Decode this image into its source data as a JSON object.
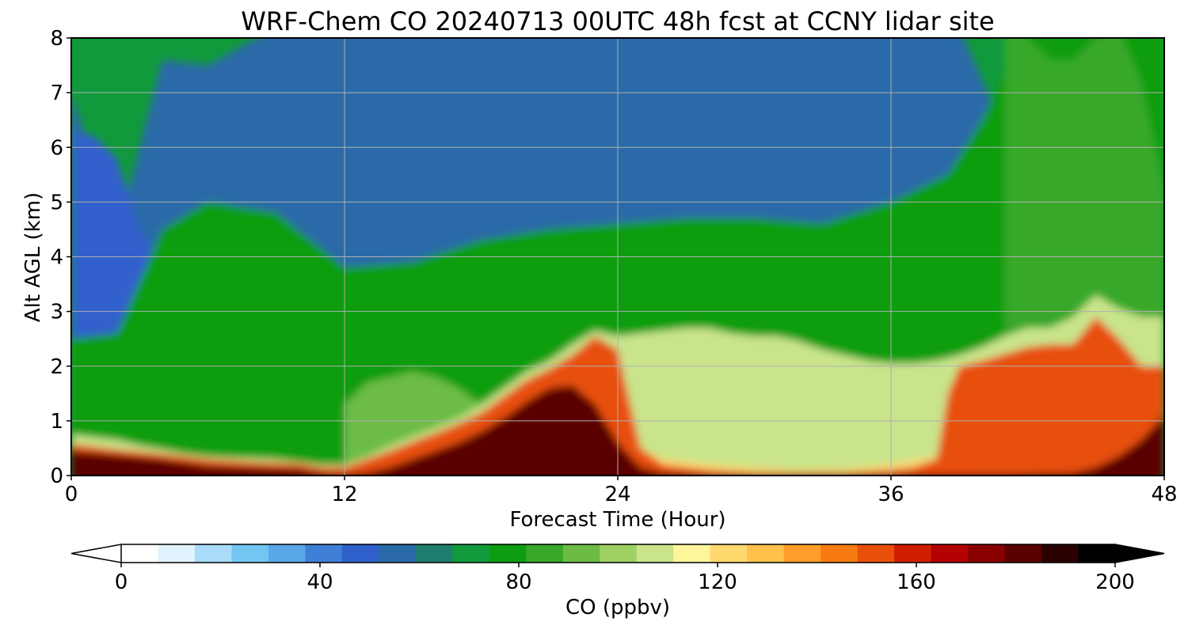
{
  "chart_data": {
    "type": "heatmap",
    "title": "WRF-Chem CO  20240713 00UTC 48h fcst at CCNY lidar site",
    "xlabel": "Forecast Time (Hour)",
    "ylabel": "Alt AGL (km)",
    "xlim": [
      0,
      48
    ],
    "ylim": [
      0,
      8
    ],
    "xticks": [
      "0",
      "12",
      "24",
      "36",
      "48"
    ],
    "yticks": [
      "0",
      "1",
      "2",
      "3",
      "4",
      "5",
      "6",
      "7",
      "8"
    ],
    "grid": true,
    "colorbar": {
      "label": "CO  (ppbv)",
      "ticks": [
        "0",
        "40",
        "80",
        "120",
        "160",
        "200"
      ],
      "range": [
        0,
        200
      ],
      "extend": "both",
      "colors": [
        "#ffffff",
        "#e0f3ff",
        "#a8dcf8",
        "#74c6f2",
        "#5aa8e8",
        "#3f7fd6",
        "#3060cc",
        "#2a6aa8",
        "#1e7f6e",
        "#119a3c",
        "#0c9d10",
        "#37a82a",
        "#6cbc44",
        "#9fd162",
        "#c9e48a",
        "#fff59a",
        "#ffd86e",
        "#ffc04c",
        "#ff9e28",
        "#f77b10",
        "#e8500a",
        "#d11d00",
        "#b30000",
        "#8a0000",
        "#5a0000",
        "#2a0000",
        "#000000"
      ]
    },
    "layers": [
      {
        "value": 55,
        "x": [
          0,
          2,
          4,
          6,
          9,
          12,
          15,
          18,
          21,
          24,
          27,
          30,
          33,
          36,
          39,
          42,
          44,
          46,
          48
        ],
        "y": [
          7.0,
          4.4,
          7.6,
          7.5,
          8.2,
          8.2,
          8.2,
          8.2,
          8.2,
          8.2,
          8.2,
          8.2,
          8.2,
          8.2,
          8.2,
          5.3,
          4.8,
          8.2,
          8.2
        ]
      },
      {
        "value": 45,
        "x": [
          0,
          1,
          2,
          3,
          4
        ],
        "y": [
          6.3,
          6.2,
          5.8,
          4.5,
          3.8
        ]
      },
      {
        "value": 78,
        "x": [
          0,
          2,
          4,
          6,
          9,
          12,
          15,
          18,
          21,
          24,
          27,
          30,
          33,
          36,
          38.5,
          40,
          42,
          44,
          46,
          48
        ],
        "y": [
          2.5,
          2.6,
          4.5,
          5.0,
          4.8,
          3.8,
          3.9,
          4.3,
          4.5,
          4.6,
          4.7,
          4.7,
          4.6,
          5.0,
          5.5,
          6.5,
          8.2,
          8.2,
          8.2,
          8.2
        ]
      },
      {
        "value": 88,
        "x": [
          41,
          42,
          43,
          44,
          45,
          46,
          47,
          48
        ],
        "y": [
          8.2,
          8.0,
          7.6,
          7.6,
          8.0,
          8.2,
          7.2,
          5.2
        ]
      },
      {
        "value": 92,
        "x": [
          12,
          13,
          14,
          15,
          16,
          17,
          18,
          19,
          20
        ],
        "y": [
          1.3,
          1.7,
          1.8,
          1.9,
          1.8,
          1.6,
          1.3,
          1.6,
          1.9
        ]
      },
      {
        "value": 110,
        "x": [
          0,
          2,
          3,
          4,
          5,
          6,
          7,
          8,
          9,
          10,
          11,
          12,
          13,
          14,
          15,
          16,
          17,
          18,
          19,
          20,
          21,
          22,
          23,
          24,
          25,
          26,
          27,
          28,
          29,
          30,
          31,
          32,
          33,
          34,
          35,
          36,
          37,
          38,
          39,
          40,
          41,
          42,
          43,
          44,
          45,
          46,
          47,
          48
        ],
        "y": [
          0.75,
          0.65,
          0.55,
          0.48,
          0.4,
          0.35,
          0.33,
          0.32,
          0.3,
          0.25,
          0.2,
          0.2,
          0.35,
          0.55,
          0.72,
          0.88,
          1.05,
          1.3,
          1.6,
          1.9,
          2.1,
          2.4,
          2.65,
          2.55,
          2.6,
          2.65,
          2.7,
          2.7,
          2.6,
          2.55,
          2.55,
          2.45,
          2.3,
          2.2,
          2.1,
          2.05,
          2.05,
          2.1,
          2.2,
          2.35,
          2.55,
          2.7,
          2.7,
          2.9,
          3.3,
          3.05,
          2.9,
          2.9
        ]
      },
      {
        "value": 125,
        "x": [
          24,
          26,
          28,
          30,
          32,
          34,
          36,
          38
        ],
        "y": [
          0.7,
          0.3,
          0.2,
          0.15,
          0.1,
          0.12,
          0.2,
          0.35
        ]
      },
      {
        "value": 150,
        "x": [
          0,
          2,
          4,
          6,
          8,
          10,
          11,
          12,
          13,
          14,
          15,
          16,
          17,
          18,
          19,
          20,
          21,
          22,
          23,
          24,
          25,
          26,
          28,
          30,
          32,
          34,
          36,
          37,
          38,
          38.5,
          39,
          40,
          42,
          43,
          44,
          45,
          46,
          47,
          48
        ],
        "y": [
          0.58,
          0.48,
          0.4,
          0.3,
          0.25,
          0.22,
          0.15,
          0.15,
          0.3,
          0.45,
          0.62,
          0.78,
          0.95,
          1.15,
          1.45,
          1.75,
          1.95,
          2.2,
          2.55,
          2.3,
          0.5,
          0.2,
          0.1,
          0.05,
          0.05,
          0.05,
          0.1,
          0.15,
          0.3,
          1.5,
          2.0,
          2.1,
          2.35,
          2.4,
          2.4,
          2.9,
          2.5,
          2.0,
          2.0
        ]
      },
      {
        "value": 185,
        "x": [
          0,
          2,
          4,
          6,
          8,
          10,
          11,
          12,
          13,
          14,
          15,
          16,
          17,
          18,
          19,
          20,
          21,
          22,
          23,
          24,
          25,
          26,
          28,
          30,
          32,
          34,
          36,
          38,
          40,
          42,
          44,
          45,
          46,
          47,
          48
        ],
        "y": [
          0.45,
          0.38,
          0.3,
          0.18,
          0.15,
          0.12,
          0.05,
          0.02,
          0.05,
          0.15,
          0.3,
          0.45,
          0.6,
          0.8,
          1.05,
          1.35,
          1.6,
          1.65,
          1.3,
          0.6,
          0.15,
          0.05,
          0.02,
          0.02,
          0.02,
          0.02,
          0.02,
          0.02,
          0.02,
          0.03,
          0.05,
          0.15,
          0.35,
          0.65,
          1.1
        ]
      }
    ]
  }
}
